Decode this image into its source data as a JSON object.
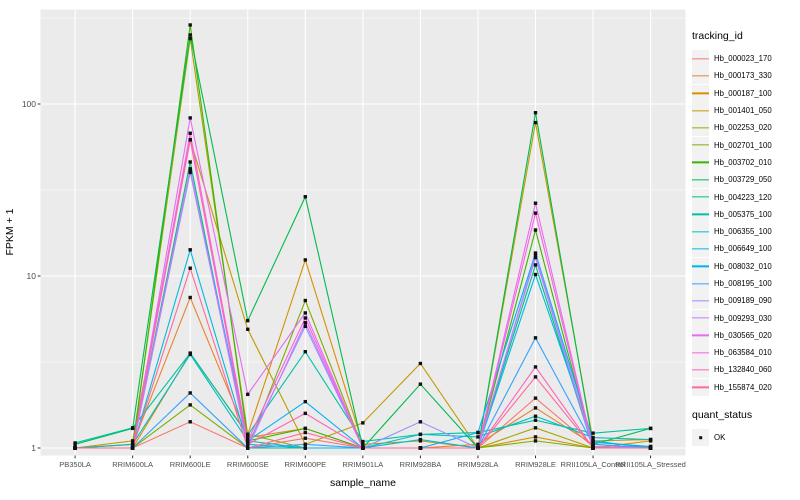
{
  "figure": {
    "background": "#FFFFFF",
    "panel_bg": "#EBEBEB",
    "grid_color": "#FFFFFF",
    "tick_text_color": "#4D4D4D",
    "axis_tick_color": "#333333",
    "marker_color": "#111111"
  },
  "chart_data": {
    "type": "line",
    "title": "",
    "xlabel": "sample_name",
    "ylabel": "FPKM + 1",
    "y_scale": "log10",
    "y_ticks": [
      1,
      10,
      100
    ],
    "y_minor_ticks": [
      3.1623,
      31.623,
      316.23
    ],
    "ylim": [
      0.9,
      355
    ],
    "grid": "on",
    "legend_position": "right",
    "legend_titles": {
      "color": "tracking_id",
      "shape": "quant_status"
    },
    "marker": {
      "shape": "filled-square",
      "color": "#111111",
      "label": "OK"
    },
    "categories": [
      "PB350LA",
      "RRIM600LA",
      "RRIM600LE",
      "RRIM600SE",
      "RRIM600PE",
      "RRIM901LA",
      "RRIM928BA",
      "RRIM928LA",
      "RRIM928LE",
      "RRII105LA_Control",
      "RRII105LA_Stressed"
    ],
    "series": [
      {
        "name": "Hb_000023_170",
        "color": "#F8766D",
        "values": [
          1.0,
          1.0,
          1.42,
          1.0,
          1.14,
          1.0,
          1.0,
          1.0,
          1.95,
          1.02,
          1.0
        ]
      },
      {
        "name": "Hb_000173_330",
        "color": "#EA8331",
        "values": [
          1.0,
          1.05,
          7.5,
          1.15,
          1.3,
          1.0,
          1.0,
          1.05,
          1.71,
          1.05,
          1.0
        ]
      },
      {
        "name": "Hb_000187_100",
        "color": "#D89000",
        "values": [
          1.0,
          1.0,
          3.56,
          1.2,
          12.4,
          1.05,
          1.1,
          1.0,
          1.16,
          1.0,
          1.1
        ]
      },
      {
        "name": "Hb_001401_050",
        "color": "#C09B00",
        "values": [
          1.0,
          1.1,
          62.0,
          4.9,
          1.05,
          1.4,
          3.1,
          1.0,
          78.0,
          1.1,
          1.12
        ]
      },
      {
        "name": "Hb_002253_020",
        "color": "#A3A500",
        "values": [
          1.0,
          1.05,
          240.0,
          1.2,
          1.0,
          1.0,
          1.0,
          1.0,
          1.31,
          1.0,
          1.0
        ]
      },
      {
        "name": "Hb_002701_100",
        "color": "#7CAE00",
        "values": [
          1.0,
          1.0,
          1.78,
          1.0,
          7.2,
          1.0,
          1.0,
          1.0,
          1.1,
          1.0,
          1.0
        ]
      },
      {
        "name": "Hb_003702_010",
        "color": "#39B600",
        "values": [
          1.0,
          1.0,
          288.0,
          1.1,
          1.3,
          1.0,
          1.0,
          1.0,
          18.5,
          1.0,
          1.02
        ]
      },
      {
        "name": "Hb_003729_050",
        "color": "#00BB4E",
        "values": [
          1.05,
          1.3,
          252.0,
          5.5,
          28.9,
          1.0,
          2.35,
          1.0,
          89.0,
          1.05,
          1.3
        ]
      },
      {
        "name": "Hb_004223_120",
        "color": "#00BF7D",
        "values": [
          1.0,
          1.0,
          46.0,
          1.0,
          1.0,
          1.0,
          1.0,
          1.0,
          11.6,
          1.0,
          1.0
        ]
      },
      {
        "name": "Hb_005375_100",
        "color": "#00C1A3",
        "values": [
          1.07,
          1.31,
          3.56,
          1.19,
          3.63,
          1.09,
          1.2,
          1.23,
          1.45,
          1.22,
          1.3
        ]
      },
      {
        "name": "Hb_006355_100",
        "color": "#00BFC4",
        "values": [
          1.0,
          1.05,
          3.5,
          1.1,
          1.0,
          1.0,
          1.2,
          1.16,
          1.53,
          1.15,
          1.12
        ]
      },
      {
        "name": "Hb_006649_100",
        "color": "#00BAE0",
        "values": [
          1.0,
          1.0,
          14.2,
          1.05,
          1.0,
          1.0,
          1.12,
          1.0,
          10.2,
          1.08,
          1.02
        ]
      },
      {
        "name": "Hb_008032_010",
        "color": "#00B0F6",
        "values": [
          1.0,
          1.0,
          41.3,
          1.1,
          1.86,
          1.0,
          1.0,
          1.23,
          13.6,
          1.1,
          1.0
        ]
      },
      {
        "name": "Hb_008195_100",
        "color": "#35A2FF",
        "values": [
          1.0,
          1.0,
          2.09,
          1.0,
          1.05,
          1.0,
          1.0,
          1.0,
          4.37,
          1.05,
          1.0
        ]
      },
      {
        "name": "Hb_009189_090",
        "color": "#9590FF",
        "values": [
          1.0,
          1.0,
          40.0,
          1.05,
          5.1,
          1.0,
          1.42,
          1.0,
          12.8,
          1.0,
          1.0
        ]
      },
      {
        "name": "Hb_009293_030",
        "color": "#C77CFF",
        "values": [
          1.0,
          1.0,
          42.0,
          1.0,
          5.35,
          1.0,
          1.0,
          1.0,
          13.2,
          1.02,
          1.0
        ]
      },
      {
        "name": "Hb_030565_020",
        "color": "#E76BF3",
        "values": [
          1.0,
          1.0,
          83.0,
          2.05,
          6.1,
          1.0,
          1.0,
          1.0,
          26.5,
          1.0,
          1.0
        ]
      },
      {
        "name": "Hb_063584_010",
        "color": "#FA62DB",
        "values": [
          1.0,
          1.0,
          67.6,
          1.1,
          5.7,
          1.0,
          1.0,
          1.0,
          23.2,
          1.0,
          1.0
        ]
      },
      {
        "name": "Hb_132840_060",
        "color": "#FF62BC",
        "values": [
          1.0,
          1.0,
          61.8,
          1.05,
          1.59,
          1.0,
          1.0,
          1.0,
          2.96,
          1.0,
          1.0
        ]
      },
      {
        "name": "Hb_155874_020",
        "color": "#FF6A98",
        "values": [
          1.0,
          1.0,
          11.1,
          1.0,
          1.23,
          1.0,
          1.0,
          1.0,
          2.59,
          1.0,
          1.0
        ]
      }
    ]
  }
}
